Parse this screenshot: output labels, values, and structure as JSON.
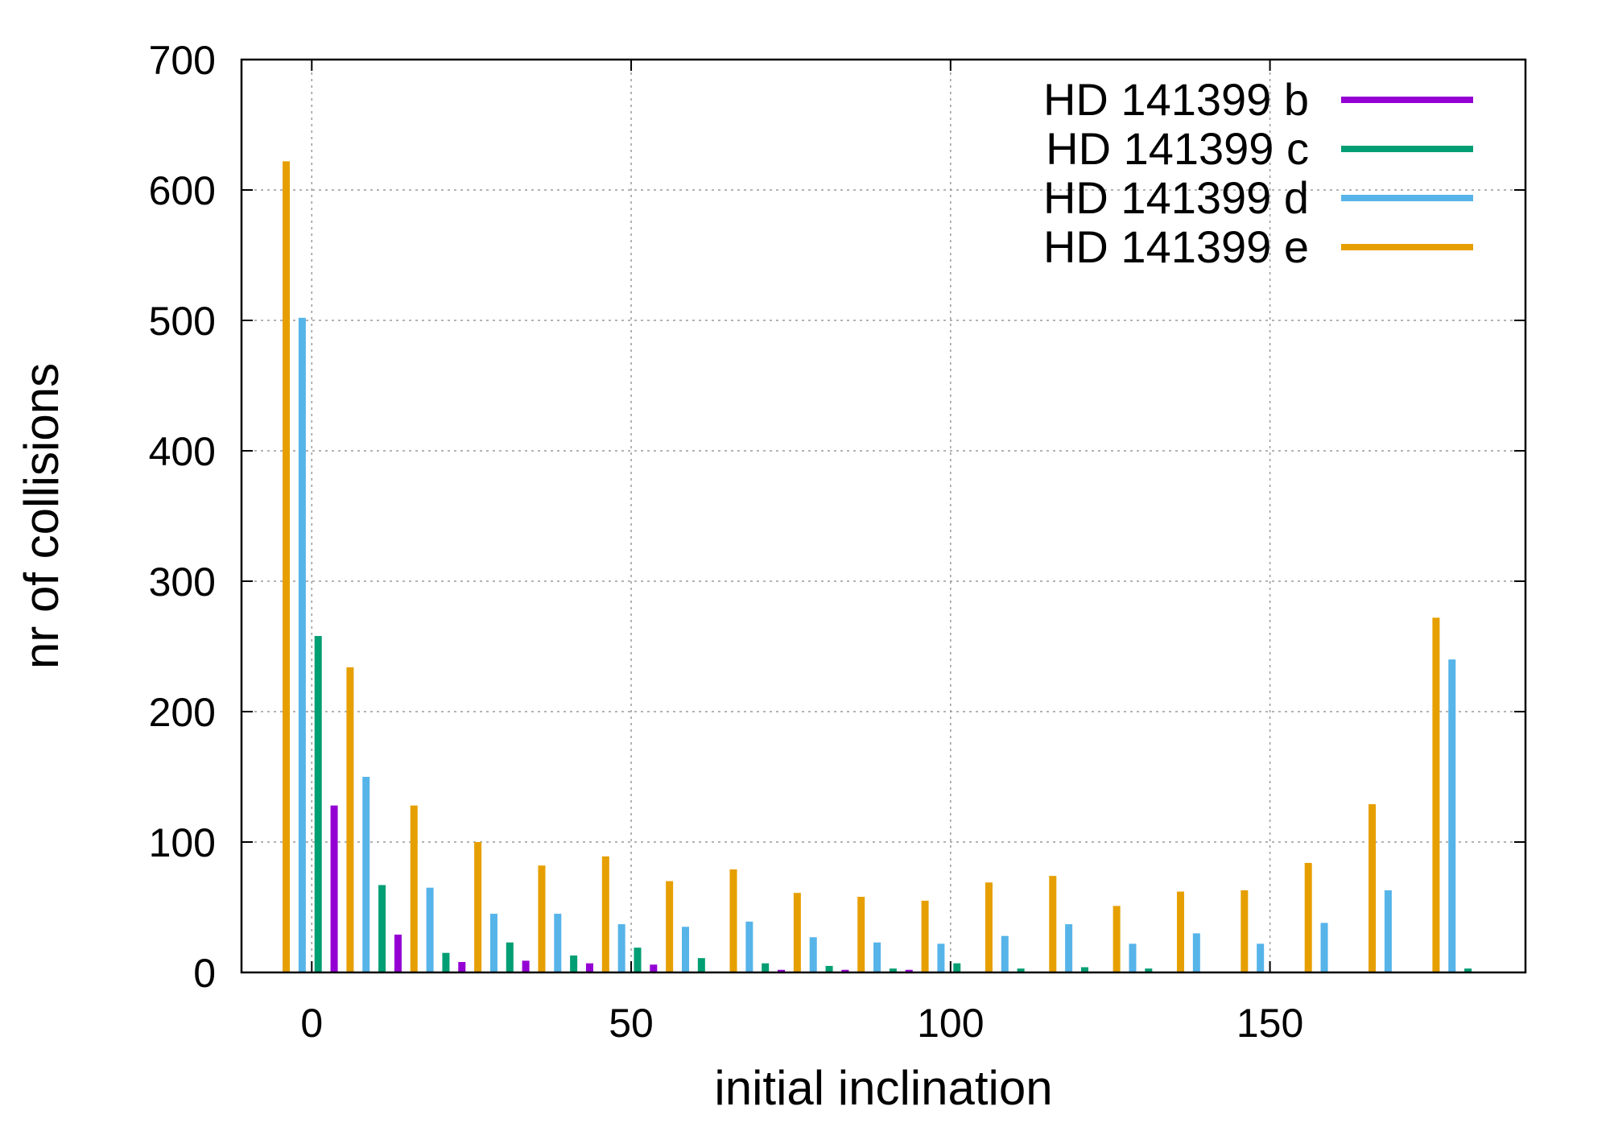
{
  "chart_data": {
    "type": "bar",
    "xlabel": "initial inclination",
    "ylabel": "nr of collisions",
    "xlim": [
      -11,
      190
    ],
    "ylim": [
      0,
      700
    ],
    "xticks": [
      0,
      50,
      100,
      150
    ],
    "yticks": [
      0,
      100,
      200,
      300,
      400,
      500,
      600,
      700
    ],
    "grid": true,
    "legend_position": "top-right",
    "x": [
      0,
      10,
      20,
      30,
      40,
      50,
      60,
      70,
      80,
      90,
      100,
      110,
      120,
      130,
      140,
      150,
      160,
      170,
      180
    ],
    "series": [
      {
        "name": "HD 141399 b",
        "color": "#9400D3",
        "values": [
          128,
          29,
          8,
          9,
          7,
          6,
          0,
          2,
          2,
          2,
          0,
          0,
          0,
          0,
          0,
          0,
          0,
          0,
          0
        ]
      },
      {
        "name": "HD 141399 c",
        "color": "#009E73",
        "values": [
          258,
          67,
          15,
          23,
          13,
          19,
          11,
          7,
          5,
          3,
          7,
          3,
          4,
          3,
          0,
          0,
          0,
          0,
          3
        ]
      },
      {
        "name": "HD 141399 d",
        "color": "#56B4E9",
        "values": [
          502,
          150,
          65,
          45,
          45,
          37,
          35,
          39,
          27,
          23,
          22,
          28,
          37,
          22,
          30,
          22,
          38,
          63,
          240
        ]
      },
      {
        "name": "HD 141399 e",
        "color": "#E69F00",
        "values": [
          622,
          234,
          128,
          100,
          82,
          89,
          70,
          79,
          61,
          58,
          55,
          69,
          74,
          51,
          62,
          63,
          84,
          129,
          272
        ]
      }
    ]
  }
}
